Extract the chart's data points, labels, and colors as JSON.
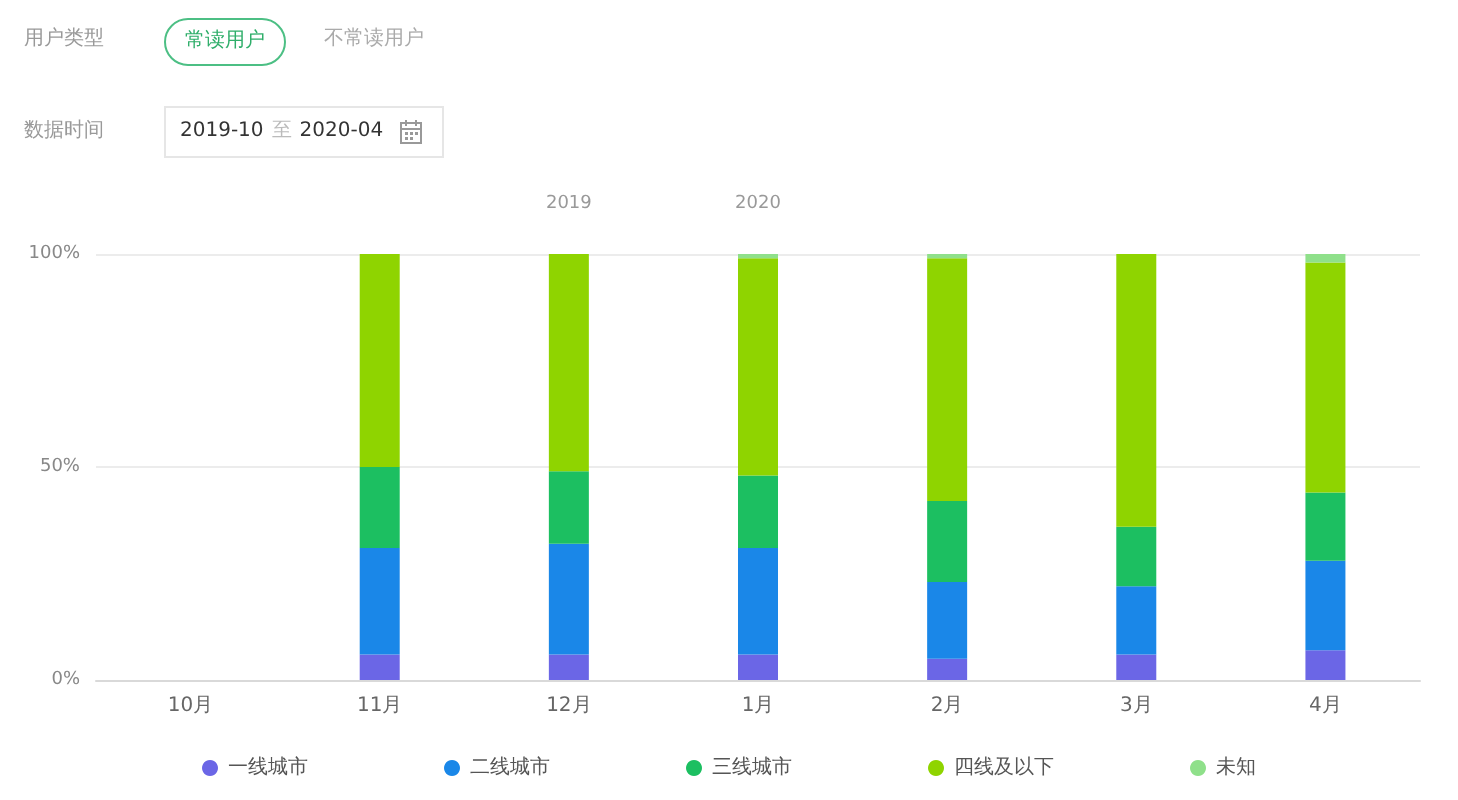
{
  "chart_data": {
    "type": "bar",
    "stacked": true,
    "categories": [
      "10月",
      "11月",
      "12月",
      "1月",
      "2月",
      "3月",
      "4月"
    ],
    "series": [
      {
        "name": "一线城市",
        "color": "#6b66e6",
        "values": [
          null,
          6,
          6,
          6,
          5,
          6,
          7
        ]
      },
      {
        "name": "二线城市",
        "color": "#1a87e8",
        "values": [
          null,
          25,
          26,
          25,
          18,
          16,
          21
        ]
      },
      {
        "name": "三线城市",
        "color": "#1cbf61",
        "values": [
          null,
          19,
          17,
          17,
          19,
          14,
          16
        ]
      },
      {
        "name": "四线及以下",
        "color": "#8fd400",
        "values": [
          null,
          50,
          51,
          51,
          57,
          64,
          54
        ]
      },
      {
        "name": "未知",
        "color": "#8fe08a",
        "values": [
          null,
          0,
          0,
          1,
          1,
          0,
          2
        ]
      }
    ],
    "ylim": [
      0,
      100
    ],
    "yticks": [
      {
        "value": 0,
        "label": "0%"
      },
      {
        "value": 50,
        "label": "50%"
      },
      {
        "value": 100,
        "label": "100%"
      }
    ],
    "grid": "y",
    "legend": "bottom",
    "annotations": [
      "用户类型",
      "常读用户",
      "不常读用户",
      "数据时间",
      "2019-10",
      "至",
      "2020-04",
      "2019",
      "2020"
    ]
  }
}
